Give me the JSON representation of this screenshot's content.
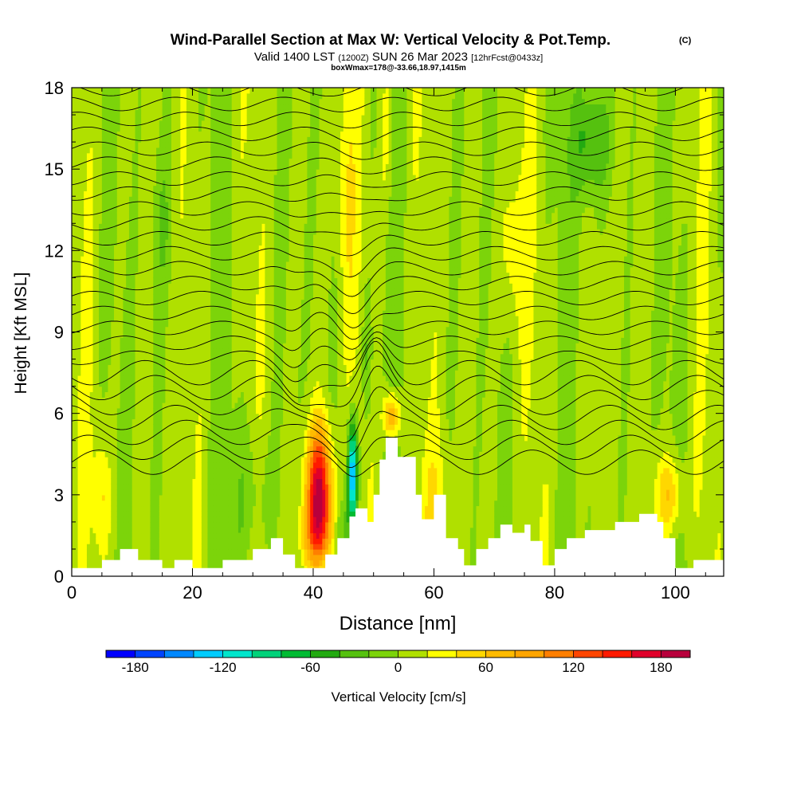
{
  "chart_data": {
    "type": "heatmap",
    "title_main": "Wind-Parallel Section at Max W: Vertical Velocity & Pot.Temp.",
    "title_mark": "(C)",
    "subtitle_a": "Valid 1400 LST",
    "subtitle_b": "(1200Z)",
    "subtitle_c": "SUN 26 Mar 2023",
    "subtitle_d": "[12hrFcst@0433z]",
    "subtitle_small": "boxWmax=178@-33.66,18.97,1415m",
    "xlabel": "Distance [nm]",
    "ylabel": "Height [Kft MSL]",
    "xlim": [
      0,
      108
    ],
    "ylim": [
      0,
      18
    ],
    "x_ticks": [
      0,
      20,
      40,
      60,
      80,
      100
    ],
    "y_ticks": [
      0,
      3,
      6,
      9,
      12,
      15,
      18
    ],
    "colorbar": {
      "label": "Vertical Velocity [cm/s]",
      "range": [
        -200,
        200
      ],
      "step": 20,
      "tick_values": [
        -180,
        -120,
        -60,
        0,
        60,
        120,
        180
      ],
      "tick_labels": [
        "-180",
        "-120",
        "-60",
        "0",
        "60",
        "120",
        "180"
      ],
      "colors": [
        "#0000ff",
        "#0044ff",
        "#0088ff",
        "#00ccff",
        "#00e6cc",
        "#00d27a",
        "#00bb33",
        "#22aa11",
        "#55c10f",
        "#7cd40a",
        "#b0e000",
        "#ffff00",
        "#ffd700",
        "#ffbb00",
        "#ffa500",
        "#ff7f00",
        "#ff4500",
        "#ff1a00",
        "#e0002a",
        "#b8003c"
      ]
    },
    "terrain_height_kft": [
      [
        0,
        0.3
      ],
      [
        5,
        0.3
      ],
      [
        5,
        0.6
      ],
      [
        8,
        0.6
      ],
      [
        8,
        1.0
      ],
      [
        11,
        1.0
      ],
      [
        11,
        0.6
      ],
      [
        15,
        0.6
      ],
      [
        15,
        0.3
      ],
      [
        17,
        0.3
      ],
      [
        17,
        0.6
      ],
      [
        20,
        0.6
      ],
      [
        20,
        0.3
      ],
      [
        25,
        0.3
      ],
      [
        25,
        0.6
      ],
      [
        30,
        0.6
      ],
      [
        30,
        1.0
      ],
      [
        33,
        1.0
      ],
      [
        33,
        1.4
      ],
      [
        35,
        1.4
      ],
      [
        35,
        0.8
      ],
      [
        37,
        0.8
      ],
      [
        37,
        0.3
      ],
      [
        42,
        0.3
      ],
      [
        42,
        0.8
      ],
      [
        44,
        0.8
      ],
      [
        44,
        1.4
      ],
      [
        46,
        1.4
      ],
      [
        46,
        2.2
      ],
      [
        47,
        2.2
      ],
      [
        47,
        2.5
      ],
      [
        49,
        2.5
      ],
      [
        49,
        2.0
      ],
      [
        50,
        2.0
      ],
      [
        50,
        3.0
      ],
      [
        51,
        3.0
      ],
      [
        51,
        4.3
      ],
      [
        52,
        4.3
      ],
      [
        52,
        5.1
      ],
      [
        54,
        5.1
      ],
      [
        54,
        4.4
      ],
      [
        57,
        4.4
      ],
      [
        57,
        3.0
      ],
      [
        58,
        3.0
      ],
      [
        58,
        2.1
      ],
      [
        60,
        2.1
      ],
      [
        60,
        3.0
      ],
      [
        62,
        3.0
      ],
      [
        62,
        1.4
      ],
      [
        64,
        1.4
      ],
      [
        64,
        1.0
      ],
      [
        65,
        1.0
      ],
      [
        65,
        0.4
      ],
      [
        67,
        0.4
      ],
      [
        67,
        1.0
      ],
      [
        69,
        1.0
      ],
      [
        69,
        1.4
      ],
      [
        71,
        1.4
      ],
      [
        71,
        1.9
      ],
      [
        73,
        1.9
      ],
      [
        73,
        1.6
      ],
      [
        75,
        1.6
      ],
      [
        75,
        1.9
      ],
      [
        76,
        1.9
      ],
      [
        76,
        1.3
      ],
      [
        78,
        1.3
      ],
      [
        78,
        0.4
      ],
      [
        80,
        0.4
      ],
      [
        80,
        1.0
      ],
      [
        82,
        1.0
      ],
      [
        82,
        1.4
      ],
      [
        85,
        1.4
      ],
      [
        85,
        1.7
      ],
      [
        90,
        1.7
      ],
      [
        90,
        2.0
      ],
      [
        94,
        2.0
      ],
      [
        94,
        2.3
      ],
      [
        97,
        2.3
      ],
      [
        97,
        2.0
      ],
      [
        98,
        2.0
      ],
      [
        98,
        1.4
      ],
      [
        100,
        1.4
      ],
      [
        100,
        0.3
      ],
      [
        103,
        0.3
      ],
      [
        103,
        0.6
      ],
      [
        108,
        0.6
      ]
    ],
    "w_features_cms": [
      {
        "x": 41,
        "z": 3.2,
        "w": 175
      },
      {
        "x": 46.5,
        "z": 3.8,
        "w": -150
      },
      {
        "x": 53,
        "z": 6.0,
        "w": 80
      },
      {
        "x": 99,
        "z": 3.0,
        "w": 60
      },
      {
        "x": 45,
        "z": 14,
        "w": 25
      },
      {
        "x": 73,
        "z": 12,
        "w": 25
      },
      {
        "x": 86,
        "z": 16,
        "w": -55
      }
    ]
  }
}
